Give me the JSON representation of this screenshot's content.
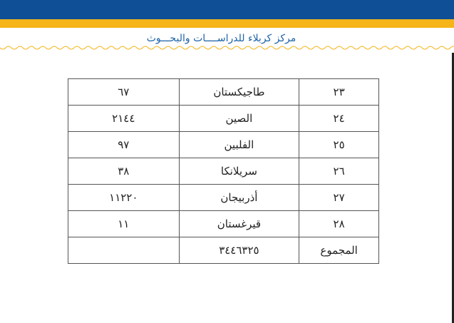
{
  "header": {
    "title": "مركز كربلاء للدراســــات والبحـــوث",
    "bar_color": "#0f4f95",
    "accent_color": "#f5b417"
  },
  "table": {
    "rows": [
      {
        "num": "٢٣",
        "country": "طاجيكستان",
        "value": "٦٧"
      },
      {
        "num": "٢٤",
        "country": "الصين",
        "value": "٢١٤٤"
      },
      {
        "num": "٢٥",
        "country": "الفلبين",
        "value": "٩٧"
      },
      {
        "num": "٢٦",
        "country": "سريلانكا",
        "value": "٣٨"
      },
      {
        "num": "٢٧",
        "country": "أذربيجان",
        "value": "١١٢٢٠"
      },
      {
        "num": "٢٨",
        "country": "قيرغستان",
        "value": "١١"
      }
    ],
    "total": {
      "label": "المجموع",
      "value": "٣٤٤٦٣٢٥",
      "extra": ""
    }
  }
}
